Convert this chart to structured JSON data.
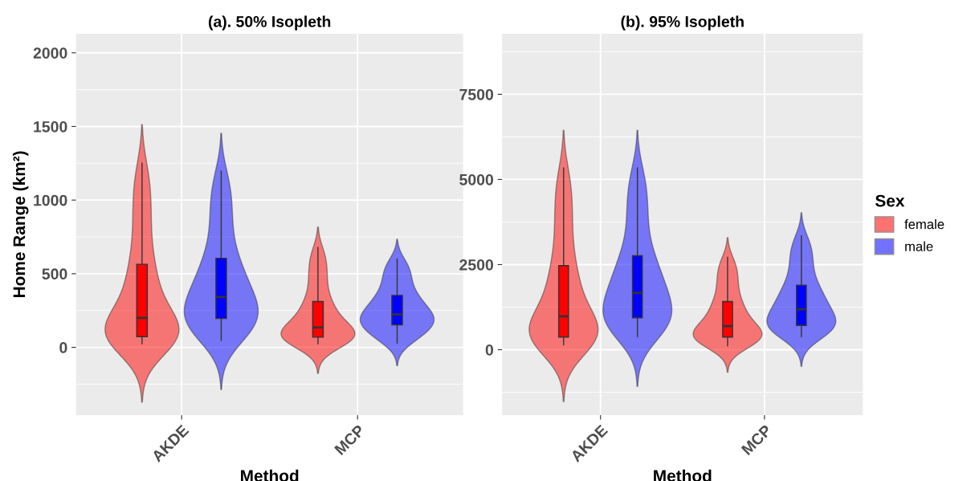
{
  "chart_data": [
    {
      "type": "box",
      "title": "(a). 50% Isopleth",
      "xlabel": "Method",
      "ylabel": "Home Range (km²)",
      "categories": [
        "AKDE",
        "MCP"
      ],
      "ylim": [
        -460,
        2130
      ],
      "yticks": [
        0,
        500,
        1000,
        1500,
        2000
      ],
      "grid": true,
      "legend": false,
      "series": [
        {
          "color": "#ff0000",
          "boxes": [
            {
              "low": 24,
              "q1": 73,
              "median": 200,
              "q3": 564,
              "high": 1251
            },
            {
              "low": 24,
              "q1": 69,
              "median": 135,
              "q3": 311,
              "high": 678
            }
          ]
        },
        {
          "color": "#0000ff",
          "boxes": [
            {
              "low": 47,
              "q1": 196,
              "median": 342,
              "q3": 605,
              "high": 1196
            },
            {
              "low": 29,
              "q1": 153,
              "median": 224,
              "q3": 353,
              "high": 600
            }
          ]
        }
      ]
    },
    {
      "type": "box",
      "title": "(b). 95% Isopleth",
      "xlabel": "Method",
      "legend_title": "Sex",
      "categories": [
        "AKDE",
        "MCP"
      ],
      "ylim": [
        -1920,
        9280
      ],
      "yticks": [
        0,
        2500,
        5000,
        7500
      ],
      "grid": true,
      "legend": "right",
      "series": [
        {
          "name": "female",
          "color": "#ff0000",
          "boxes": [
            {
              "low": 149,
              "q1": 370,
              "median": 983,
              "q3": 2469,
              "high": 5338
            },
            {
              "low": 118,
              "q1": 370,
              "median": 692,
              "q3": 1415,
              "high": 2712
            }
          ]
        },
        {
          "name": "male",
          "color": "#0000ff",
          "boxes": [
            {
              "low": 385,
              "q1": 936,
              "median": 1667,
              "q3": 2760,
              "high": 5338
            },
            {
              "low": 385,
              "q1": 715,
              "median": 1187,
              "q3": 1895,
              "high": 3341
            }
          ]
        }
      ]
    }
  ]
}
